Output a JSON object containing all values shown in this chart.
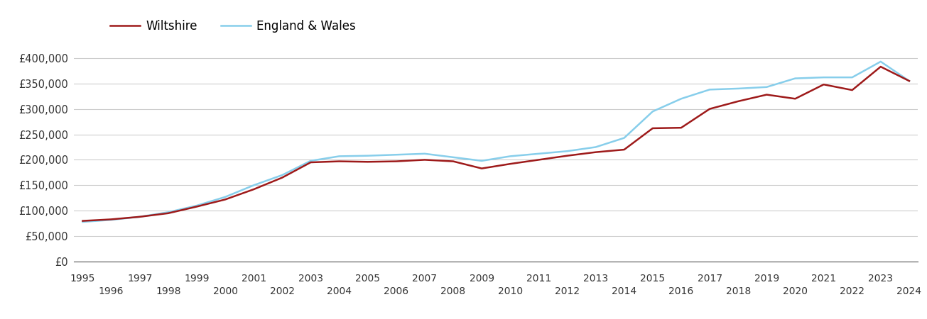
{
  "wiltshire_color": "#9e1a1a",
  "england_wales_color": "#87CEEB",
  "background_color": "#ffffff",
  "grid_color": "#cccccc",
  "legend_labels": [
    "Wiltshire",
    "England & Wales"
  ],
  "years": [
    1995,
    1996,
    1997,
    1998,
    1999,
    2000,
    2001,
    2002,
    2003,
    2004,
    2005,
    2006,
    2007,
    2008,
    2009,
    2010,
    2011,
    2012,
    2013,
    2014,
    2015,
    2016,
    2017,
    2018,
    2019,
    2020,
    2021,
    2022,
    2023,
    2024
  ],
  "wiltshire": [
    80000,
    83000,
    88000,
    95000,
    108000,
    122000,
    142000,
    165000,
    195000,
    197000,
    196000,
    197000,
    200000,
    197000,
    183000,
    192000,
    200000,
    208000,
    215000,
    220000,
    262000,
    263000,
    300000,
    315000,
    328000,
    320000,
    348000,
    337000,
    383000,
    355000
  ],
  "england_wales": [
    78000,
    82000,
    88000,
    97000,
    110000,
    127000,
    150000,
    170000,
    198000,
    207000,
    208000,
    210000,
    212000,
    205000,
    198000,
    207000,
    212000,
    217000,
    225000,
    243000,
    295000,
    320000,
    338000,
    340000,
    343000,
    360000,
    362000,
    362000,
    393000,
    355000
  ],
  "ylim": [
    0,
    420000
  ],
  "yticks": [
    0,
    50000,
    100000,
    150000,
    200000,
    250000,
    300000,
    350000,
    400000
  ],
  "ytick_labels": [
    "£0",
    "£50,000",
    "£100,000",
    "£150,000",
    "£200,000",
    "£250,000",
    "£300,000",
    "£350,000",
    "£400,000"
  ],
  "line_width": 1.8,
  "figsize": [
    13.05,
    4.5
  ],
  "dpi": 100
}
